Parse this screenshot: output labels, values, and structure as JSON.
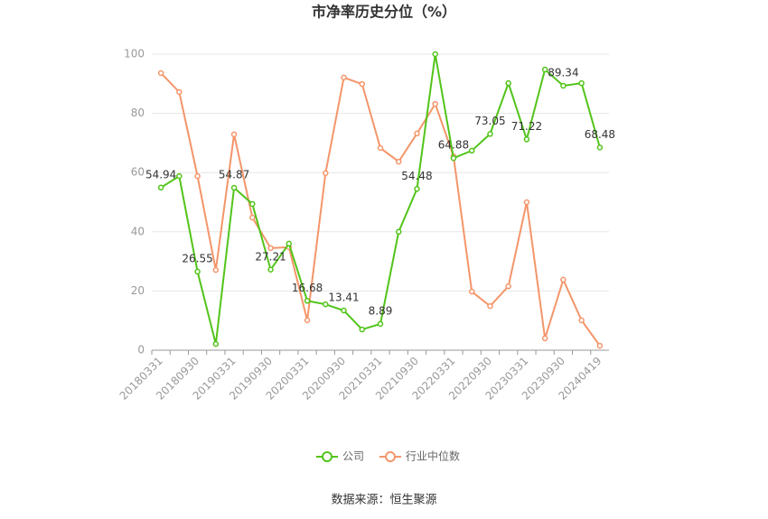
{
  "chart_data": {
    "type": "line",
    "title": "市净率历史分位（%）",
    "source": "数据来源：恒生聚源",
    "categories": [
      "20180331",
      null,
      "20180930",
      null,
      "20190331",
      null,
      "20190930",
      null,
      "20200331",
      null,
      "20200930",
      null,
      "20210331",
      null,
      "20210930",
      null,
      "20220331",
      null,
      "20220930",
      null,
      "20230331",
      null,
      "20230930",
      null,
      "20240419"
    ],
    "series": [
      {
        "name": "公司",
        "color": "#52c41a",
        "values": [
          54.94,
          58.8,
          26.55,
          2.1,
          54.87,
          49.4,
          27.21,
          36.0,
          16.68,
          15.5,
          13.41,
          7.0,
          8.89,
          40.0,
          54.48,
          100,
          64.88,
          67.4,
          73.05,
          90.2,
          71.22,
          94.8,
          89.34,
          90.2,
          68.48
        ],
        "value_labels": [
          "54.94",
          null,
          "26.55",
          null,
          "54.87",
          null,
          "27.21",
          null,
          "16.68",
          null,
          "13.41",
          null,
          "8.89",
          null,
          "54.48",
          null,
          "64.88",
          null,
          "73.05",
          null,
          "71.22",
          null,
          "89.34",
          null,
          "68.48"
        ]
      },
      {
        "name": "行业中位数",
        "color": "#f4956a",
        "values": [
          93.6,
          87.2,
          58.8,
          27.1,
          72.9,
          44.8,
          34.5,
          34.8,
          10.1,
          59.8,
          92.1,
          89.9,
          68.3,
          63.7,
          73.2,
          83.2,
          65.5,
          19.8,
          14.9,
          21.6,
          50.0,
          4.0,
          23.8,
          10.1,
          1.5
        ]
      }
    ],
    "ylim": [
      0,
      100
    ],
    "yticks": [
      0,
      20,
      40,
      60,
      80,
      100
    ],
    "grid": true
  }
}
